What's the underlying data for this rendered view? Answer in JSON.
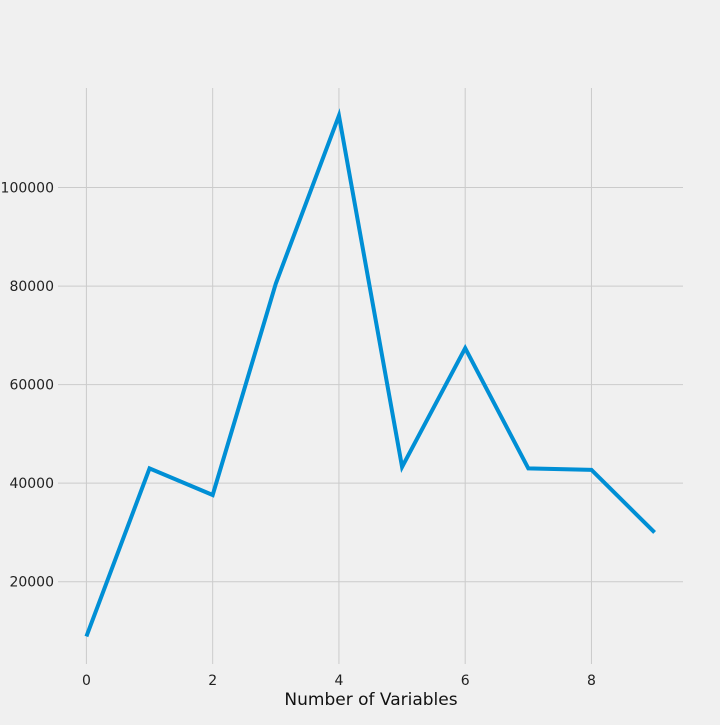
{
  "chart_data": {
    "type": "line",
    "title": "",
    "xlabel": "Number of Variables",
    "ylabel": "",
    "x": [
      0,
      1,
      2,
      3,
      4,
      5,
      6,
      7,
      8,
      9
    ],
    "series": [
      {
        "values": [
          8900,
          43000,
          37600,
          80500,
          114600,
          43300,
          67400,
          43000,
          42700,
          30000
        ]
      }
    ],
    "xlim": [
      -0.45,
      9.45
    ],
    "ylim": [
      3300,
      120200
    ],
    "xticks": [
      0,
      2,
      4,
      6,
      8
    ],
    "yticks": [
      20000,
      40000,
      60000,
      80000,
      100000
    ],
    "grid": true,
    "legend": "none",
    "colors": {
      "background": "#f0f0f0",
      "line": "#008fd5",
      "grid": "#cbcbcb"
    }
  }
}
